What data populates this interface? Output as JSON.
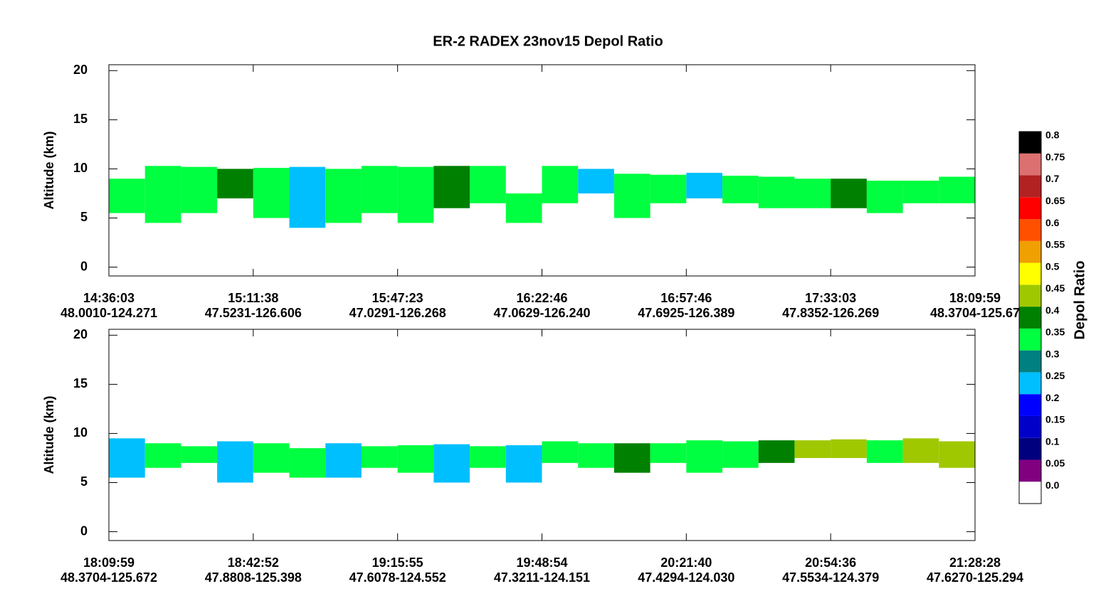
{
  "title": "ER-2 RADEX 23nov15 Depol Ratio",
  "colorbar": {
    "label": "Depol Ratio",
    "levels": [
      {
        "value": 0,
        "label": "0.0"
      },
      0.05,
      0.1,
      0.15,
      0.2,
      0.25,
      0.3,
      0.35,
      0.4,
      0.45,
      0.5,
      0.55,
      0.6,
      0.65,
      0.7,
      0.75,
      0.8
    ],
    "colors": [
      "#ffffff",
      "#800080",
      "#00007f",
      "#0000c8",
      "#0000ff",
      "#00bfff",
      "#008080",
      "#00ff40",
      "#008000",
      "#a0c800",
      "#ffff00",
      "#f0a000",
      "#ff5000",
      "#ff0000",
      "#b22222",
      "#dc7070",
      "#000000"
    ]
  },
  "chart_data": [
    {
      "type": "curtain",
      "y_label": "Altitude (km)",
      "ylim": [
        -0.9,
        20.6
      ],
      "yticks": [
        0,
        5,
        10,
        15,
        20
      ],
      "xlim": [
        0,
        6
      ],
      "xticks": [
        {
          "value": 0,
          "label": "14:36:03"
        },
        {
          "value": 1,
          "label": "15:11:38"
        },
        {
          "value": 2,
          "label": "15:47:23"
        },
        {
          "value": 3,
          "label": "16:22:46"
        },
        {
          "value": 4,
          "label": "16:57:46"
        },
        {
          "value": 5,
          "label": "17:33:03"
        },
        {
          "value": 6,
          "label": "18:09:59"
        }
      ],
      "xtick_locations": [
        "48.0010-124.271",
        "47.5231-126.606",
        "47.0291-126.268",
        "47.0629-126.240",
        "47.6925-126.389",
        "47.8352-126.269",
        "48.3704-125.67"
      ],
      "x_edges": [
        0,
        0.25,
        0.5,
        0.75,
        1,
        1.25,
        1.5,
        1.75,
        2,
        2.25,
        2.5,
        2.75,
        3,
        3.25,
        3.5,
        3.75,
        4,
        4.25,
        4.5,
        4.75,
        5,
        5.25,
        5.5,
        5.75,
        6
      ],
      "cloud_top": [
        9,
        10.3,
        10.2,
        10,
        10.1,
        10.2,
        10,
        10.3,
        10.2,
        10.3,
        10.3,
        7.5,
        10.3,
        10,
        9.5,
        9.4,
        9.6,
        9.3,
        9.2,
        9,
        9,
        8.8,
        8.8,
        9.2
      ],
      "cloud_base": [
        5.5,
        4.5,
        5.5,
        7,
        5,
        4,
        4.5,
        5.5,
        4.5,
        6,
        6.5,
        4.5,
        6.5,
        7.5,
        5,
        6.5,
        7,
        6.5,
        6,
        6,
        6,
        5.5,
        6.5,
        6.5
      ],
      "depol": [
        0.35,
        0.35,
        0.35,
        0.4,
        0.35,
        0.25,
        0.35,
        0.35,
        0.35,
        0.4,
        0.35,
        0.35,
        0.35,
        0.25,
        0.35,
        0.35,
        0.25,
        0.35,
        0.35,
        0.35,
        0.4,
        0.35,
        0.35,
        0.35
      ]
    },
    {
      "type": "curtain",
      "y_label": "Altitude (km)",
      "ylim": [
        -0.9,
        20.6
      ],
      "yticks": [
        0,
        5,
        10,
        15,
        20
      ],
      "xlim": [
        0,
        6
      ],
      "xticks": [
        {
          "value": 0,
          "label": "18:09:59"
        },
        {
          "value": 1,
          "label": "18:42:52"
        },
        {
          "value": 2,
          "label": "19:15:55"
        },
        {
          "value": 3,
          "label": "19:48:54"
        },
        {
          "value": 4,
          "label": "20:21:40"
        },
        {
          "value": 5,
          "label": "20:54:36"
        },
        {
          "value": 6,
          "label": "21:28:28"
        }
      ],
      "xtick_locations": [
        "48.3704-125.672",
        "47.8808-125.398",
        "47.6078-124.552",
        "47.3211-124.151",
        "47.4294-124.030",
        "47.5534-124.379",
        "47.6270-125.294"
      ],
      "x_edges": [
        0,
        0.25,
        0.5,
        0.75,
        1,
        1.25,
        1.5,
        1.75,
        2,
        2.25,
        2.5,
        2.75,
        3,
        3.25,
        3.5,
        3.75,
        4,
        4.25,
        4.5,
        4.75,
        5,
        5.25,
        5.5,
        5.75,
        6
      ],
      "cloud_top": [
        9.5,
        9,
        8.7,
        9.2,
        9,
        8.5,
        9,
        8.7,
        8.8,
        8.9,
        8.7,
        8.8,
        9.2,
        9,
        9,
        9,
        9.3,
        9.2,
        9.3,
        9.3,
        9.4,
        9.3,
        9.5,
        9.2
      ],
      "cloud_base": [
        5.5,
        6.5,
        7,
        5,
        6,
        5.5,
        5.5,
        6.5,
        6,
        5,
        6.5,
        5,
        7,
        6.5,
        6,
        7,
        6,
        6.5,
        7,
        7.5,
        7.5,
        7,
        7,
        6.5
      ],
      "depol": [
        0.25,
        0.35,
        0.35,
        0.25,
        0.35,
        0.35,
        0.25,
        0.35,
        0.35,
        0.25,
        0.35,
        0.25,
        0.35,
        0.35,
        0.4,
        0.35,
        0.35,
        0.35,
        0.4,
        0.45,
        0.45,
        0.35,
        0.45,
        0.45
      ]
    }
  ]
}
